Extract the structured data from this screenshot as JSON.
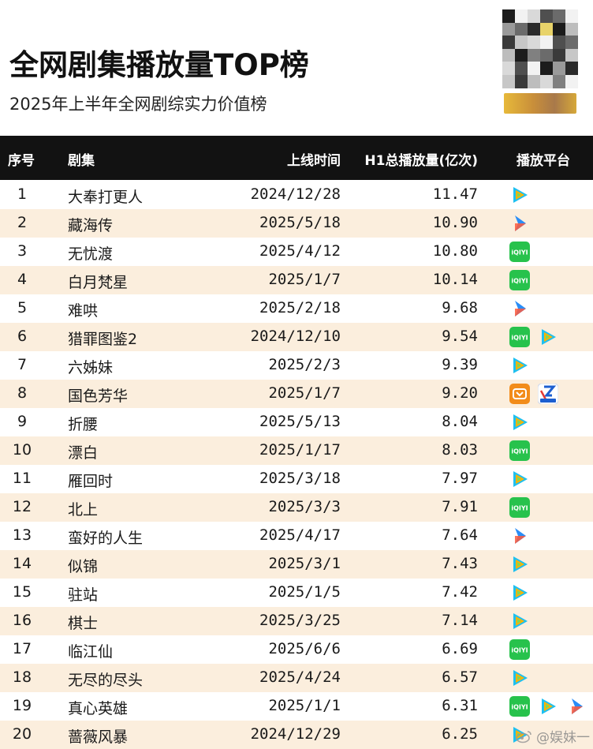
{
  "header": {
    "title": "全网剧集播放量TOP榜",
    "subtitle": "2025年上半年全网剧综实力价值榜"
  },
  "logo": {
    "name": "mosaic-logo-icon"
  },
  "table": {
    "columns": {
      "rank": "序号",
      "name": "剧集",
      "date": "上线时间",
      "plays": "H1总播放量(亿次)",
      "platform": "播放平台"
    },
    "rows": [
      {
        "rank": "1",
        "name": "大奉打更人",
        "date": "2024/12/28",
        "plays": "11.47",
        "platforms": [
          "tencent-video"
        ]
      },
      {
        "rank": "2",
        "name": "藏海传",
        "date": "2025/5/18",
        "plays": "10.90",
        "platforms": [
          "youku"
        ]
      },
      {
        "rank": "3",
        "name": "无忧渡",
        "date": "2025/4/12",
        "plays": "10.80",
        "platforms": [
          "iqiyi"
        ]
      },
      {
        "rank": "4",
        "name": "白月梵星",
        "date": "2025/1/7",
        "plays": "10.14",
        "platforms": [
          "iqiyi"
        ]
      },
      {
        "rank": "5",
        "name": "难哄",
        "date": "2025/2/18",
        "plays": "9.68",
        "platforms": [
          "youku"
        ]
      },
      {
        "rank": "6",
        "name": "猎罪图鉴2",
        "date": "2024/12/10",
        "plays": "9.54",
        "platforms": [
          "iqiyi",
          "tencent-video"
        ]
      },
      {
        "rank": "7",
        "name": "六姊妹",
        "date": "2025/2/3",
        "plays": "9.39",
        "platforms": [
          "tencent-video"
        ]
      },
      {
        "rank": "8",
        "name": "国色芳华",
        "date": "2025/1/7",
        "plays": "9.20",
        "platforms": [
          "mango-tv",
          "cctv"
        ]
      },
      {
        "rank": "9",
        "name": "折腰",
        "date": "2025/5/13",
        "plays": "8.04",
        "platforms": [
          "tencent-video"
        ]
      },
      {
        "rank": "10",
        "name": "漂白",
        "date": "2025/1/17",
        "plays": "8.03",
        "platforms": [
          "iqiyi"
        ]
      },
      {
        "rank": "11",
        "name": "雁回时",
        "date": "2025/3/18",
        "plays": "7.97",
        "platforms": [
          "tencent-video"
        ]
      },
      {
        "rank": "12",
        "name": "北上",
        "date": "2025/3/3",
        "plays": "7.91",
        "platforms": [
          "iqiyi"
        ]
      },
      {
        "rank": "13",
        "name": "蛮好的人生",
        "date": "2025/4/17",
        "plays": "7.64",
        "platforms": [
          "youku"
        ]
      },
      {
        "rank": "14",
        "name": "似锦",
        "date": "2025/3/1",
        "plays": "7.43",
        "platforms": [
          "tencent-video"
        ]
      },
      {
        "rank": "15",
        "name": "驻站",
        "date": "2025/1/5",
        "plays": "7.42",
        "platforms": [
          "tencent-video"
        ]
      },
      {
        "rank": "16",
        "name": "棋士",
        "date": "2025/3/25",
        "plays": "7.14",
        "platforms": [
          "tencent-video"
        ]
      },
      {
        "rank": "17",
        "name": "临江仙",
        "date": "2025/6/6",
        "plays": "6.69",
        "platforms": [
          "iqiyi"
        ]
      },
      {
        "rank": "18",
        "name": "无尽的尽头",
        "date": "2025/4/24",
        "plays": "6.57",
        "platforms": [
          "tencent-video"
        ]
      },
      {
        "rank": "19",
        "name": "真心英雄",
        "date": "2025/1/1",
        "plays": "6.31",
        "platforms": [
          "iqiyi",
          "tencent-video",
          "youku"
        ]
      },
      {
        "rank": "20",
        "name": "蔷薇风暴",
        "date": "2024/12/29",
        "plays": "6.25",
        "platforms": [
          "tencent-video"
        ]
      }
    ]
  },
  "watermark": {
    "text": "@娱妹一",
    "icon": "weibo-icon"
  },
  "colors": {
    "header_bg": "#121212",
    "row_alt": "#fbeedd",
    "iqiyi": "#27c24c",
    "tencent": "#1ec0f0",
    "youku": "#2a8df7",
    "mango": "#f28c1a",
    "cctv": "#1d5fd0"
  }
}
